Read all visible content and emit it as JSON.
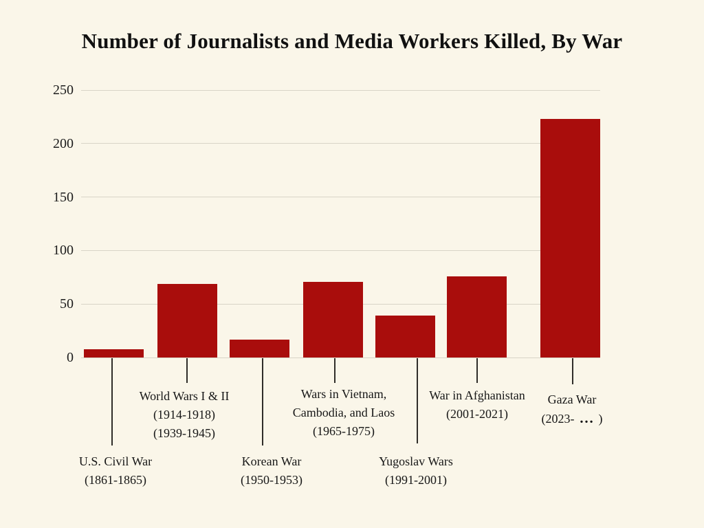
{
  "chart_data": {
    "type": "bar",
    "title": "Number of Journalists and Media Workers Killed, By War",
    "categories": [
      "U.S. Civil War (1861-1865)",
      "World Wars I & II (1914-1918) (1939-1945)",
      "Korean War (1950-1953)",
      "Wars in Vietnam, Cambodia, and Laos (1965-1975)",
      "Yugoslav Wars (1991-2001)",
      "War in Afghanistan (2001-2021)",
      "Gaza War (2023- … )"
    ],
    "category_lines": [
      [
        "U.S. Civil War",
        "(1861-1865)"
      ],
      [
        "World Wars I & II",
        "(1914-1918)",
        "(1939-1945)"
      ],
      [
        "Korean War",
        "(1950-1953)"
      ],
      [
        "Wars in Vietnam,",
        "Cambodia, and Laos",
        "(1965-1975)"
      ],
      [
        "Yugoslav Wars",
        "(1991-2001)"
      ],
      [
        "War in Afghanistan",
        "(2001-2021)"
      ],
      [
        "Gaza War",
        "(2023- … )"
      ]
    ],
    "category_slugs": [
      "us-civil-war",
      "world-wars-i-ii",
      "korean-war",
      "vietnam-cambodia-laos-wars",
      "yugoslav-wars",
      "war-in-afghanistan",
      "gaza-war"
    ],
    "values": [
      8,
      69,
      17,
      71,
      39,
      76,
      223
    ],
    "ylim": [
      0,
      250
    ],
    "yticks": [
      0,
      50,
      100,
      150,
      200,
      250
    ],
    "grid": "horizontal",
    "legend": "none",
    "bar_color": "#A90D0C",
    "background_color": "#FAF6E9",
    "gridline_color": "#D8D4C7",
    "leader_line_color": "#2E2C28",
    "text_color": "#171717"
  }
}
